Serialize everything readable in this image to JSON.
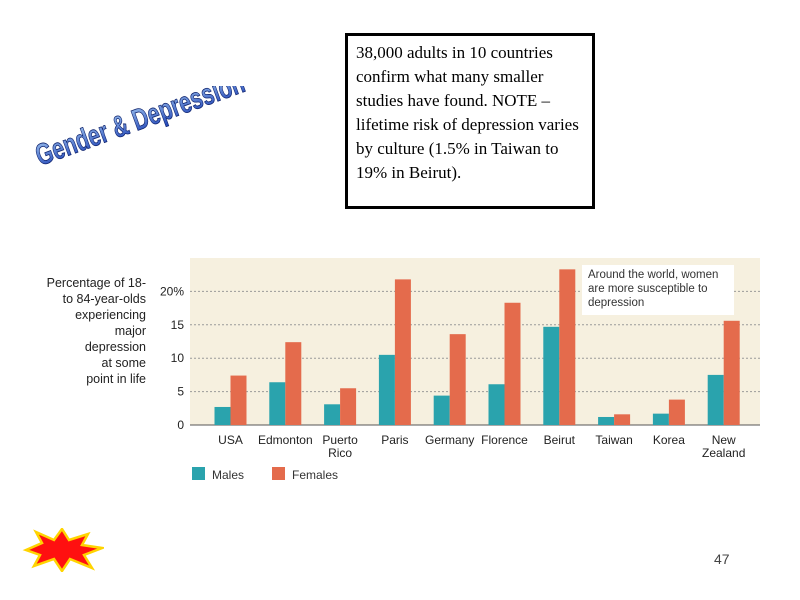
{
  "slide": {
    "wordart_title": "Gender & Depression",
    "note": "38,000 adults in 10 countries confirm what many smaller studies have found. NOTE – lifetime risk of depression varies by culture (1.5% in Taiwan to 19% in Beirut).",
    "page_number": "47"
  },
  "chart_data": {
    "type": "bar",
    "ylabel": "Percentage of 18-\nto 84-year-olds\nexperiencing\nmajor\ndepression\nat some\npoint in life",
    "annotation": "Around the world, women are more susceptible to depression",
    "categories": [
      "USA",
      "Edmonton",
      "Puerto\nRico",
      "Paris",
      "Germany",
      "Florence",
      "Beirut",
      "Taiwan",
      "Korea",
      "New\nZealand"
    ],
    "series": [
      {
        "name": "Males",
        "color": "#2aa3ad",
        "values": [
          2.7,
          6.4,
          3.1,
          10.5,
          4.4,
          6.1,
          14.7,
          1.2,
          1.7,
          7.5
        ]
      },
      {
        "name": "Females",
        "color": "#e46b4c",
        "values": [
          7.4,
          12.4,
          5.5,
          21.8,
          13.6,
          18.3,
          23.3,
          1.6,
          3.8,
          15.6
        ]
      }
    ],
    "ylim": [
      0,
      25
    ],
    "yticks": [
      0,
      5,
      10,
      15,
      20
    ],
    "ytick_labels": [
      "0",
      "5",
      "10",
      "15",
      "20%"
    ],
    "grid": true,
    "legend_position": "bottom-left",
    "plot_background": "#f6f0df"
  }
}
